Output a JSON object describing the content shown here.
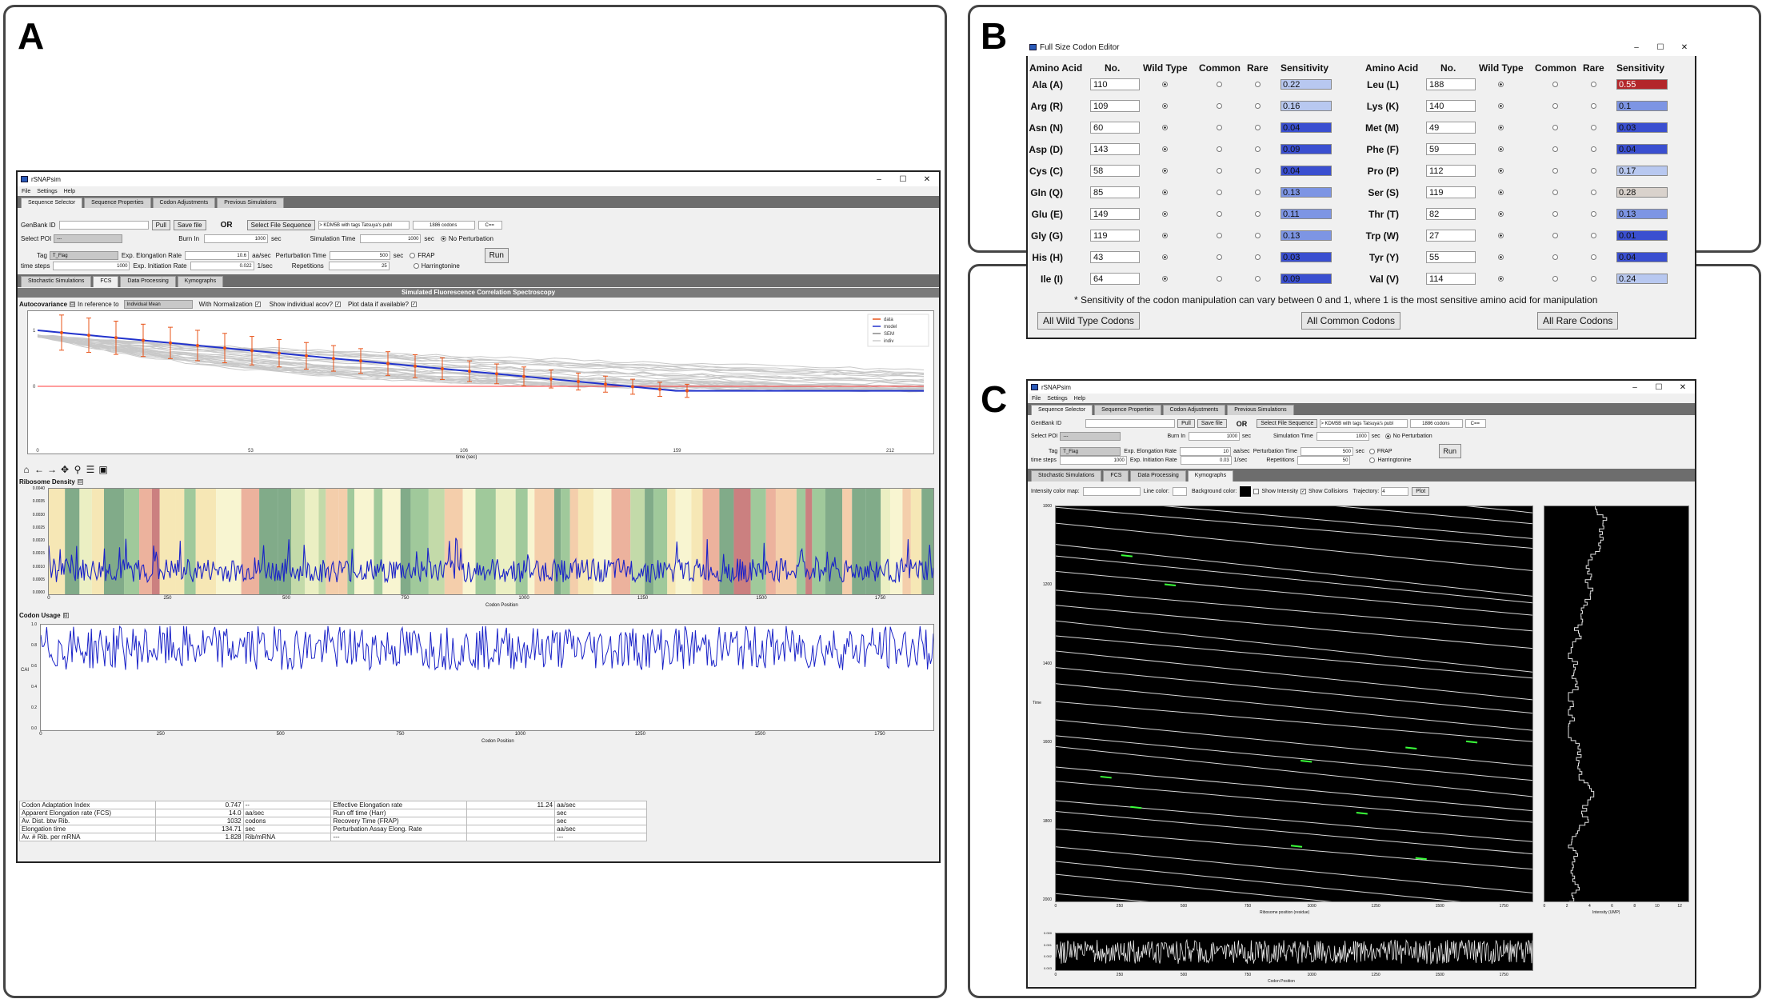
{
  "labels": {
    "a": "A",
    "b": "B",
    "c": "C"
  },
  "winA": {
    "title": "rSNAPsim",
    "menu": [
      "File",
      "Settings",
      "Help"
    ],
    "tabs": [
      "Sequence Selector",
      "Sequence Properties",
      "Codon Adjustments",
      "Previous Simulations"
    ],
    "genbank_label": "GenBank ID",
    "pull": "Pull",
    "save_file": "Save file",
    "or": "OR",
    "select_file": "Select File Sequence",
    "file_name": "> KDM5B with tags Tatsuya's publ",
    "codons": "1886 codons",
    "arrow": "C==",
    "select_poi": "Select POI",
    "poi_value": "---",
    "tag_label": "Tag",
    "tag_value": "T_Flag",
    "time_steps": "time steps",
    "time_steps_val": "1000",
    "burn_in": "Burn In",
    "burn_in_val": "1000",
    "sec": "sec",
    "elong": "Exp. Elongation Rate",
    "elong_val": "10.6",
    "aa_sec": "aa/sec",
    "init": "Exp. Initiation Rate",
    "init_val": "0.022",
    "per_sec": "1/sec",
    "sim_time": "Simulation Time",
    "sim_time_val": "1000",
    "pert_time": "Perturbation Time",
    "pert_time_val": "500",
    "reps": "Repetitions",
    "reps_val": "25",
    "no_pert": "No Perturbation",
    "frap": "FRAP",
    "harr": "Harringtonine",
    "run": "Run",
    "subtabs": [
      "Stochastic Simulations",
      "FCS",
      "Data Processing",
      "Kymographs"
    ],
    "fcs_title": "Simulated Fluorescence Correlation Spectroscopy",
    "autocov": "Autocovariance",
    "in_ref": "In reference to",
    "ref_val": "Individual Mean",
    "with_norm": "With Normalization",
    "show_ind": "Show individual acov?",
    "plot_data": "Plot data if available?",
    "legend": [
      "data",
      "model",
      "SEM",
      "indiv"
    ],
    "ac_xlabel": "time (sec)",
    "ac_xticks": [
      "0",
      "53",
      "106",
      "159",
      "212"
    ],
    "ac_yticks": [
      "1",
      "0"
    ],
    "rib_title": "Ribosome Density",
    "rib_yticks": [
      "0.0040",
      "0.0035",
      "0.0030",
      "0.0025",
      "0.0020",
      "0.0015",
      "0.0010",
      "0.0005",
      "0.0000"
    ],
    "rib_xticks": [
      "0",
      "250",
      "500",
      "750",
      "1000",
      "1250",
      "1500",
      "1750"
    ],
    "rib_xlabel": "Codon Position",
    "cu_title": "Codon Usage",
    "cu_yticks": [
      "1.0",
      "0.8",
      "0.6",
      "0.4",
      "0.2",
      "0.0"
    ],
    "cu_xticks": [
      "0",
      "250",
      "500",
      "750",
      "1000",
      "1250",
      "1500",
      "1750"
    ],
    "cu_xlabel": "Codon Position",
    "cu_ylabel": "CAI",
    "stats": [
      [
        "Codon Adaptation Index",
        "0.747",
        "--",
        "Effective Elongation rate",
        "11.24",
        "aa/sec"
      ],
      [
        "Apparent Elongation rate (FCS)",
        "14.0",
        "aa/sec",
        "Run off time (Harr)",
        "",
        "sec"
      ],
      [
        "Av. Dist. btw Rib.",
        "1032",
        "codons",
        "Recovery Time (FRAP)",
        "",
        "sec"
      ],
      [
        "Elongation time",
        "134.71",
        "sec",
        "Perturbation Assay Elong. Rate",
        "",
        "aa/sec"
      ],
      [
        "Av. # Rib. per mRNA",
        "1.828",
        "Rib/mRNA",
        "---",
        "",
        "---"
      ]
    ]
  },
  "winB": {
    "title": "Full Size Codon Editor",
    "headers": [
      "Amino Acid",
      "No.",
      "Wild Type",
      "Common",
      "Rare",
      "Sensitivity"
    ],
    "left": [
      [
        "Ala (A)",
        "110",
        "0.22"
      ],
      [
        "Arg (R)",
        "109",
        "0.16"
      ],
      [
        "Asn (N)",
        "60",
        "0.04"
      ],
      [
        "Asp (D)",
        "143",
        "0.09"
      ],
      [
        "Cys (C)",
        "58",
        "0.04"
      ],
      [
        "Gln (Q)",
        "85",
        "0.13"
      ],
      [
        "Glu (E)",
        "149",
        "0.11"
      ],
      [
        "Gly (G)",
        "119",
        "0.13"
      ],
      [
        "His (H)",
        "43",
        "0.03"
      ],
      [
        "Ile (I)",
        "64",
        "0.09"
      ]
    ],
    "right": [
      [
        "Leu (L)",
        "188",
        "0.55"
      ],
      [
        "Lys (K)",
        "140",
        "0.1"
      ],
      [
        "Met (M)",
        "49",
        "0.03"
      ],
      [
        "Phe (F)",
        "59",
        "0.04"
      ],
      [
        "Pro (P)",
        "112",
        "0.17"
      ],
      [
        "Ser (S)",
        "119",
        "0.28"
      ],
      [
        "Thr (T)",
        "82",
        "0.13"
      ],
      [
        "Trp (W)",
        "27",
        "0.01"
      ],
      [
        "Tyr (Y)",
        "55",
        "0.04"
      ],
      [
        "Val (V)",
        "114",
        "0.24"
      ]
    ],
    "note": "* Sensitivity of the codon manipulation can vary between 0 and 1, where 1 is the most sensitive amino acid for manipulation",
    "btn_wild": "All Wild Type Codons",
    "btn_common": "All Common Codons",
    "btn_rare": "All Rare Codons"
  },
  "winC": {
    "title": "rSNAPsim",
    "menu": [
      "File",
      "Settings",
      "Help"
    ],
    "tabs": [
      "Sequence Selector",
      "Sequence Properties",
      "Codon Adjustments",
      "Previous Simulations"
    ],
    "genbank_label": "GenBank ID",
    "pull": "Pull",
    "save_file": "Save file",
    "or": "OR",
    "select_file": "Select File Sequence",
    "file_name": "> KDM5B with tags Tatsuya's publ",
    "codons": "1886 codons",
    "arrow": "C==",
    "select_poi": "Select POI",
    "poi_value": "---",
    "tag_label": "Tag",
    "tag_value": "T_Flag",
    "time_steps": "time steps",
    "time_steps_val": "1000",
    "burn_in": "Burn In",
    "burn_in_val": "1000",
    "sec": "sec",
    "elong": "Exp. Elongation Rate",
    "elong_val": "10",
    "aa_sec": "aa/sec",
    "init": "Exp. Initiation Rate",
    "init_val": "0.03",
    "per_sec": "1/sec",
    "sim_time": "Simulation Time",
    "sim_time_val": "1000",
    "pert_time": "Perturbation Time",
    "pert_time_val": "500",
    "reps": "Repetitions",
    "reps_val": "50",
    "no_pert": "No Perturbation",
    "frap": "FRAP",
    "harr": "Harringtonine",
    "run": "Run",
    "subtabs": [
      "Stochastic Simulations",
      "FCS",
      "Data Processing",
      "Kymographs"
    ],
    "icm": "Intensity color map:",
    "line_color": "Line color:",
    "bg_color": "Background color:",
    "show_int": "Show Intensity",
    "show_col": "Show Collisions",
    "traj": "Trajectory:",
    "traj_val": "4",
    "plot_btn": "Plot",
    "ky_yticks": [
      "1000",
      "1200",
      "1400",
      "1600",
      "1800",
      "2000"
    ],
    "ky_ylabel": "Time",
    "ky_xticks": [
      "0",
      "250",
      "500",
      "750",
      "1000",
      "1250",
      "1500",
      "1750"
    ],
    "ky_xlabel": "Ribosome position (residue)",
    "int_xticks": [
      "0",
      "2",
      "4",
      "6",
      "8",
      "10",
      "12"
    ],
    "int_xlabel": "Intensity (UMP)",
    "bot_xticks": [
      "0",
      "250",
      "500",
      "750",
      "1000",
      "1250",
      "1500",
      "1750"
    ],
    "bot_xlabel": "Codon Position",
    "bot_yticks": [
      "0.000",
      "0.001",
      "0.002",
      "0.003"
    ]
  },
  "colors": {
    "model": "#2233cc",
    "data": "#e8541a",
    "sens_low": "#3a4fd0",
    "sens_mid": "#b8c8f0",
    "sens_high": "#b3262a",
    "sens_gray": "#d9d2cc"
  }
}
